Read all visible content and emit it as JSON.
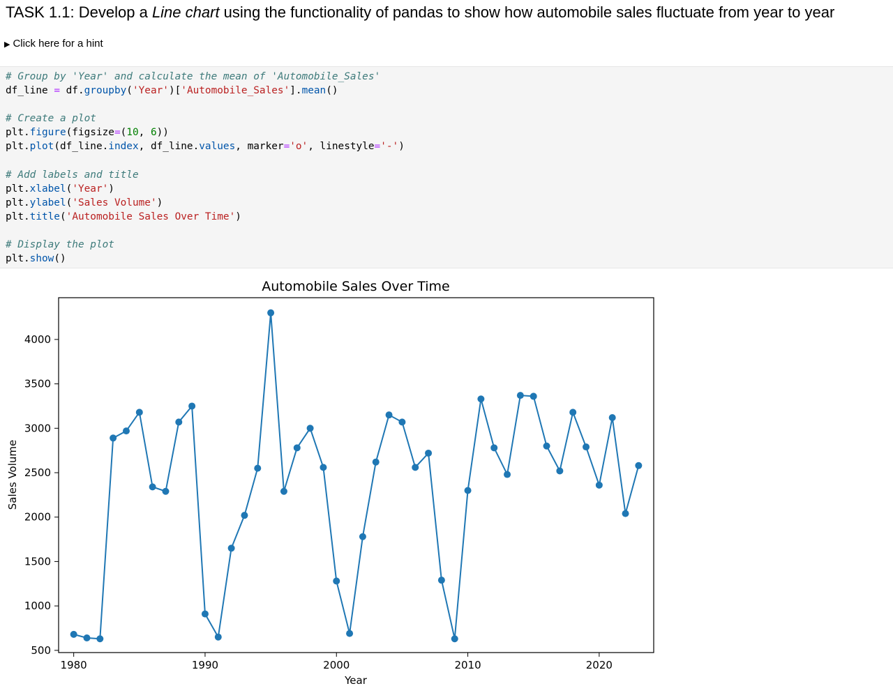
{
  "task": {
    "prefix": "TASK 1.1: Develop a ",
    "emphasis": "Line chart",
    "suffix": " using the functionality of pandas to show how automobile sales fluctuate from year to year"
  },
  "hint": {
    "label": "Click here for a hint"
  },
  "code": {
    "l1_comment": "# Group by 'Year' and calculate the mean of 'Automobile_Sales'",
    "l2_a": "df_line ",
    "l2_eq": "=",
    "l2_b": " df.",
    "l2_fn": "groupby",
    "l2_c": "(",
    "l2_s1": "'Year'",
    "l2_d": ")[",
    "l2_s2": "'Automobile_Sales'",
    "l2_e": "].",
    "l2_fn2": "mean",
    "l2_f": "()",
    "l4_comment": "# Create a plot",
    "l5_a": "plt.",
    "l5_fn": "figure",
    "l5_b": "(figsize",
    "l5_eq": "=",
    "l5_c": "(",
    "l5_n1": "10",
    "l5_d": ", ",
    "l5_n2": "6",
    "l5_e": "))",
    "l6_a": "plt.",
    "l6_fn": "plot",
    "l6_b": "(df_line.",
    "l6_fn2": "index",
    "l6_c": ", df_line.",
    "l6_fn3": "values",
    "l6_d": ", marker",
    "l6_eq": "=",
    "l6_s1": "'o'",
    "l6_e": ", linestyle",
    "l6_eq2": "=",
    "l6_s2": "'-'",
    "l6_f": ")",
    "l8_comment": "# Add labels and title",
    "l9_a": "plt.",
    "l9_fn": "xlabel",
    "l9_b": "(",
    "l9_s": "'Year'",
    "l9_c": ")",
    "l10_a": "plt.",
    "l10_fn": "ylabel",
    "l10_b": "(",
    "l10_s": "'Sales Volume'",
    "l10_c": ")",
    "l11_a": "plt.",
    "l11_fn": "title",
    "l11_b": "(",
    "l11_s": "'Automobile Sales Over Time'",
    "l11_c": ")",
    "l13_comment": "# Display the plot",
    "l14_a": "plt.",
    "l14_fn": "show",
    "l14_b": "()"
  },
  "chart_data": {
    "type": "line",
    "title": "Automobile Sales Over Time",
    "xlabel": "Year",
    "ylabel": "Sales Volume",
    "xlim": [
      1978.85,
      2024.15
    ],
    "ylim": [
      475,
      4470
    ],
    "xticks": [
      1980,
      1990,
      2000,
      2010,
      2020
    ],
    "yticks": [
      500,
      1000,
      1500,
      2000,
      2500,
      3000,
      3500,
      4000
    ],
    "x": [
      1980,
      1981,
      1982,
      1983,
      1984,
      1985,
      1986,
      1987,
      1988,
      1989,
      1990,
      1991,
      1992,
      1993,
      1994,
      1995,
      1996,
      1997,
      1998,
      1999,
      2000,
      2001,
      2002,
      2003,
      2004,
      2005,
      2006,
      2007,
      2008,
      2009,
      2010,
      2011,
      2012,
      2013,
      2014,
      2015,
      2016,
      2017,
      2018,
      2019,
      2020,
      2021,
      2022,
      2023
    ],
    "y": [
      680,
      640,
      630,
      2890,
      2970,
      3180,
      2340,
      2290,
      3070,
      3250,
      910,
      650,
      1650,
      2020,
      2550,
      4300,
      2290,
      2780,
      3000,
      2560,
      1280,
      690,
      1780,
      2620,
      3150,
      3070,
      2560,
      2720,
      1290,
      630,
      2300,
      3330,
      2780,
      2480,
      3370,
      3360,
      2800,
      2520,
      3180,
      2790,
      2360,
      3120,
      2040,
      2580
    ],
    "grid": false,
    "legend": "none",
    "line_color": "#1f77b4"
  }
}
